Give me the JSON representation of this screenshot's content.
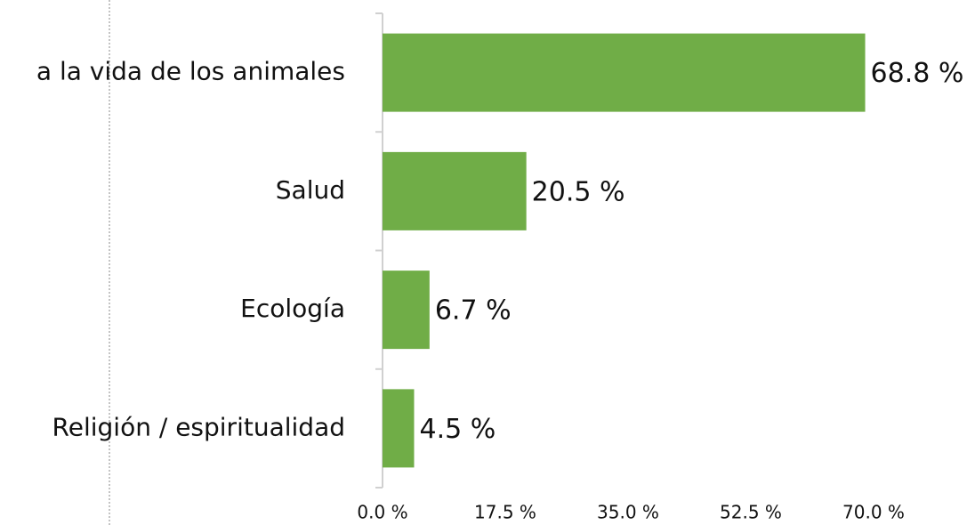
{
  "chart_data": {
    "type": "bar",
    "orientation": "horizontal",
    "categories": [
      "a la vida de los animales",
      "Salud",
      "Ecología",
      "Religión / espiritualidad"
    ],
    "values": [
      68.8,
      20.5,
      6.7,
      4.5
    ],
    "value_labels": [
      "68.8 %",
      "20.5 %",
      "6.7 %",
      "4.5 %"
    ],
    "color": "#70ad47",
    "xlim": [
      0,
      70
    ],
    "xticks": [
      {
        "value": 0,
        "label": "0.0 %"
      },
      {
        "value": 17.5,
        "label": "17.5 %"
      },
      {
        "value": 35,
        "label": "35.0 %"
      },
      {
        "value": 52.5,
        "label": "52.5 %"
      },
      {
        "value": 70,
        "label": "70.0 %"
      }
    ],
    "grid": false
  }
}
